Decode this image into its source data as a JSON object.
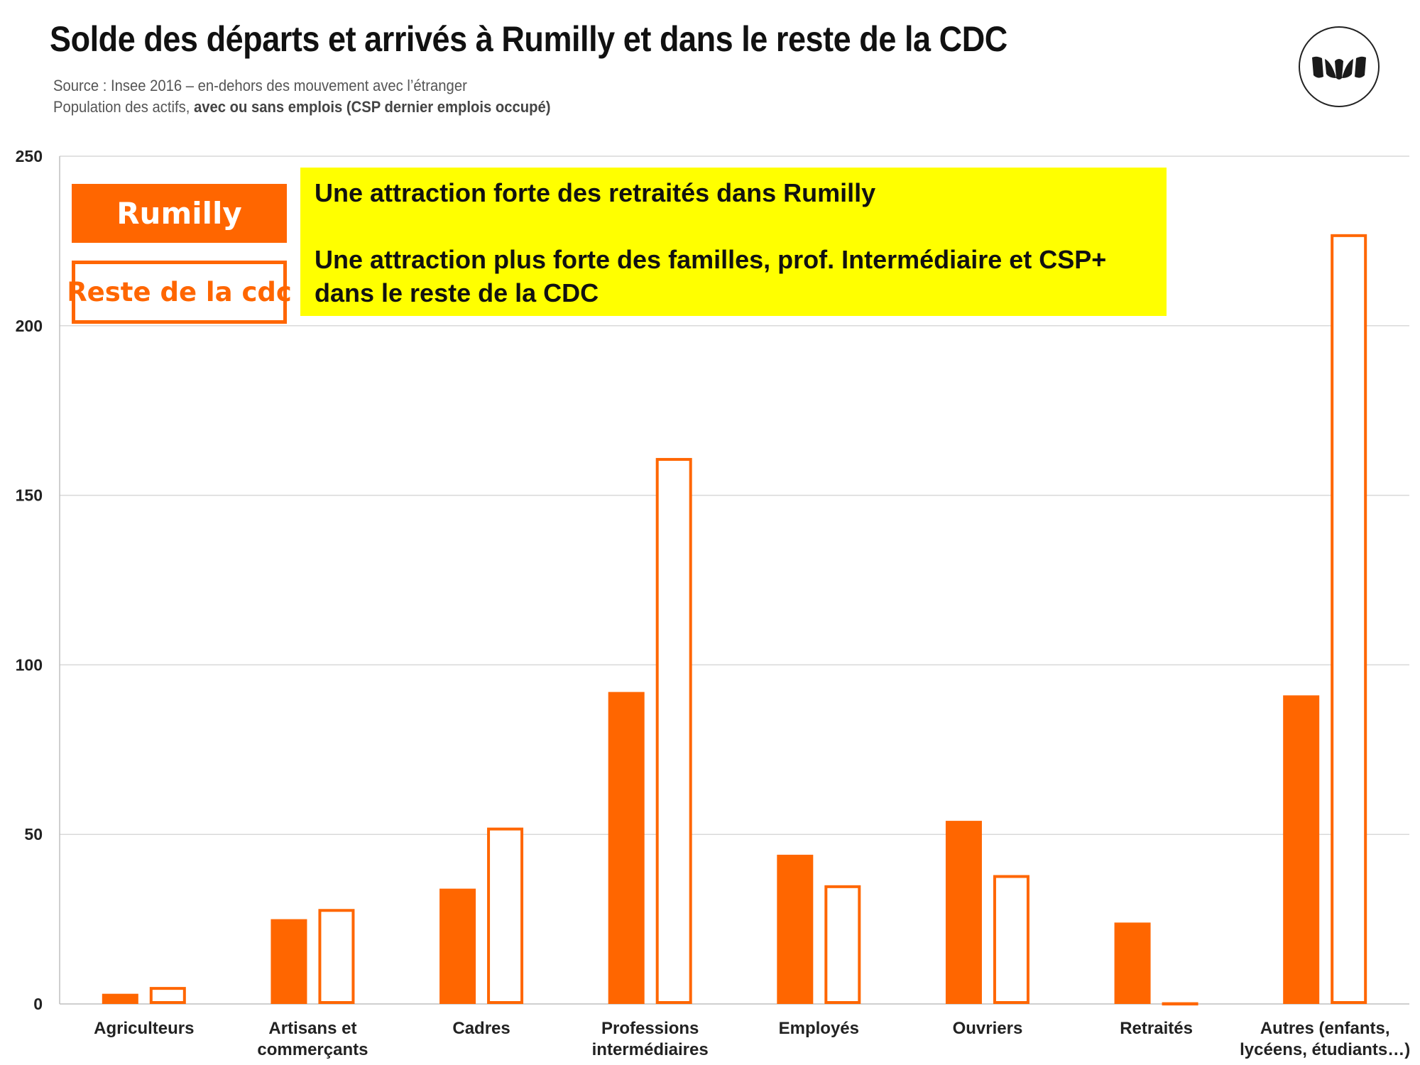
{
  "title": "Solde des départs et arrivés à Rumilly et dans le reste de la CDC",
  "source_line1": "Source : Insee 2016 – en-dehors des mouvement avec l’étranger",
  "source_line2_plain": "Population des actifs, ",
  "source_line2_bold": "avec ou sans emplois (CSP dernier emplois occupé)",
  "logo_icon": "brand-logo-icon",
  "annotation": {
    "line1": "Une attraction forte des retraités dans Rumilly",
    "line2": "Une attraction plus forte des familles, prof. Intermédiaire et CSP+",
    "line3": "dans le reste de la CDC"
  },
  "colors": {
    "accent": "#ff6600",
    "highlight": "#ffff00",
    "grid": "#d9d9d9"
  },
  "chart_data": {
    "type": "bar",
    "categories": [
      [
        "Agriculteurs"
      ],
      [
        "Artisans et",
        "commerçants"
      ],
      [
        "Cadres"
      ],
      [
        "Professions",
        "intermédiaires"
      ],
      [
        "Employés"
      ],
      [
        "Ouvriers"
      ],
      [
        "Retraités"
      ],
      [
        "Autres (enfants,",
        "lycéens, étudiants…)"
      ]
    ],
    "series": [
      {
        "name": "Rumilly",
        "style": "filled",
        "values": [
          3,
          25,
          34,
          92,
          44,
          54,
          24,
          91
        ]
      },
      {
        "name": "Reste de la cdc",
        "style": "outline",
        "values": [
          5,
          28,
          52,
          161,
          35,
          38,
          0.5,
          227
        ]
      }
    ],
    "ylim": [
      0,
      250
    ],
    "yticks": [
      0,
      50,
      100,
      150,
      200,
      250
    ],
    "grid": true,
    "legend_placement": "top-left"
  }
}
